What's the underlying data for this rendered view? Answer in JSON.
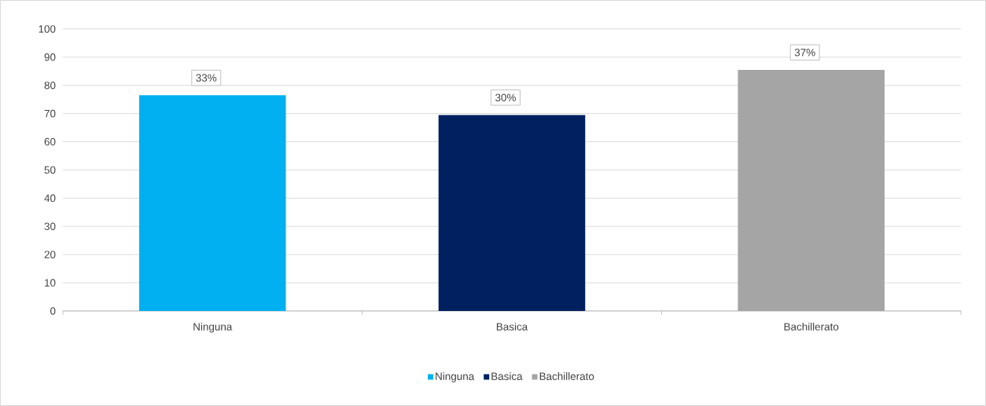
{
  "chart_data": {
    "type": "bar",
    "categories": [
      "Ninguna",
      "Basica",
      "Bachillerato"
    ],
    "series": [
      {
        "name": "Ninguna",
        "color": "#00b0f0",
        "values": [
          76.5,
          null,
          null
        ]
      },
      {
        "name": "Basica",
        "color": "#002060",
        "values": [
          null,
          69.5,
          null
        ]
      },
      {
        "name": "Bachillerato",
        "color": "#a5a5a5",
        "values": [
          null,
          null,
          85.5
        ]
      }
    ],
    "annotations": [
      {
        "text": "33%",
        "x": "Ninguna",
        "y": 76.5
      },
      {
        "text": "30%",
        "x": "Basica",
        "y": 69.5
      },
      {
        "text": "37%",
        "x": "Bachillerato",
        "y": 85.5
      }
    ],
    "ylim": [
      0,
      100
    ],
    "yticks": [
      0,
      10,
      20,
      30,
      40,
      50,
      60,
      70,
      80,
      90,
      100
    ],
    "grid": "y",
    "legend": "bottom"
  }
}
